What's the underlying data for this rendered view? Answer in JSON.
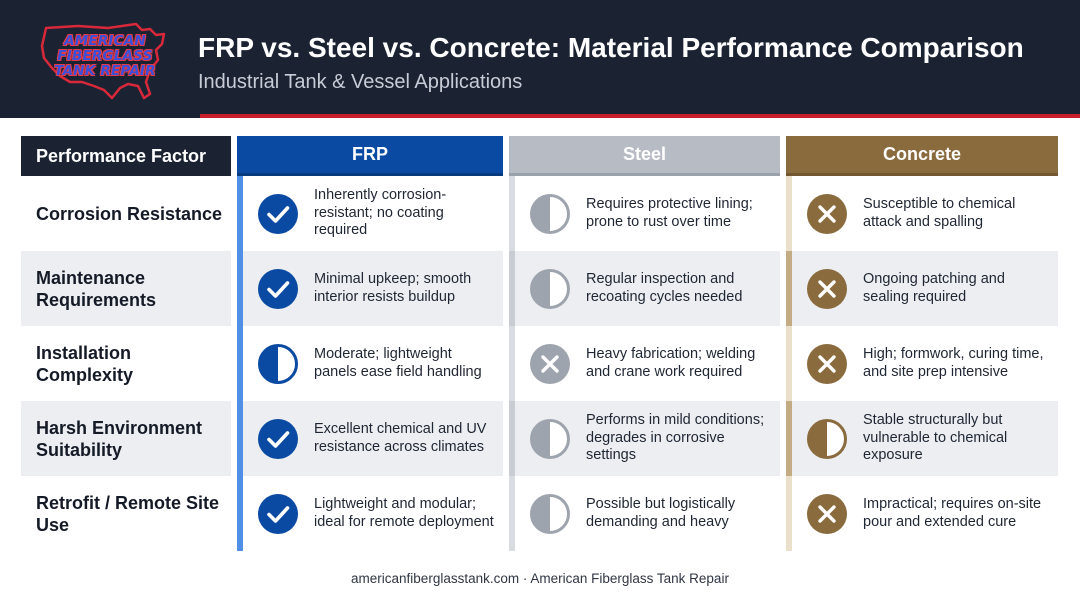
{
  "header": {
    "logo_lines": [
      "AMERICAN",
      "FIBERGLASS",
      "TANK REPAIR"
    ],
    "title": "FRP vs. Steel vs. Concrete: Material Performance Comparison",
    "subtitle": "Industrial Tank & Vessel Applications"
  },
  "columns": {
    "factor": "Performance Factor",
    "frp": "FRP",
    "steel": "Steel",
    "concrete": "Concrete"
  },
  "colors": {
    "navy": "#1b2333",
    "red_accent": "#c8202a",
    "frp_blue": "#0b4aa2",
    "steel_gray": "#b7bcc4",
    "concrete_brown": "#8a6b3d"
  },
  "rows": [
    {
      "factor": "Corrosion Resistance",
      "frp": {
        "rating": "check",
        "text": "Inherently corrosion-resistant; no coating required"
      },
      "steel": {
        "rating": "half",
        "text": "Requires protective lining; prone to rust over time"
      },
      "concrete": {
        "rating": "cross",
        "text": "Susceptible to chemical attack and spalling"
      }
    },
    {
      "factor": "Maintenance Requirements",
      "frp": {
        "rating": "check",
        "text": "Minimal upkeep; smooth interior resists buildup"
      },
      "steel": {
        "rating": "half",
        "text": "Regular inspection and recoating cycles needed"
      },
      "concrete": {
        "rating": "cross",
        "text": "Ongoing patching and sealing required"
      }
    },
    {
      "factor": "Installation Complexity",
      "frp": {
        "rating": "half",
        "text": "Moderate; lightweight panels ease field handling"
      },
      "steel": {
        "rating": "cross",
        "text": "Heavy fabrication; welding and crane work required"
      },
      "concrete": {
        "rating": "cross",
        "text": "High; formwork, curing time, and site prep intensive"
      }
    },
    {
      "factor": "Harsh Environment Suitability",
      "frp": {
        "rating": "check",
        "text": "Excellent chemical and UV resistance across climates"
      },
      "steel": {
        "rating": "half",
        "text": "Performs in mild conditions; degrades in corrosive settings"
      },
      "concrete": {
        "rating": "half",
        "text": "Stable structurally but vulnerable to chemical exposure"
      }
    },
    {
      "factor": "Retrofit / Remote Site Use",
      "frp": {
        "rating": "check",
        "text": "Lightweight and modular; ideal for remote deployment"
      },
      "steel": {
        "rating": "half",
        "text": "Possible but logistically demanding and heavy"
      },
      "concrete": {
        "rating": "cross",
        "text": "Impractical; requires on-site pour and extended cure"
      }
    }
  ],
  "footer": "americanfiberglasstank.com · American Fiberglass Tank Repair"
}
